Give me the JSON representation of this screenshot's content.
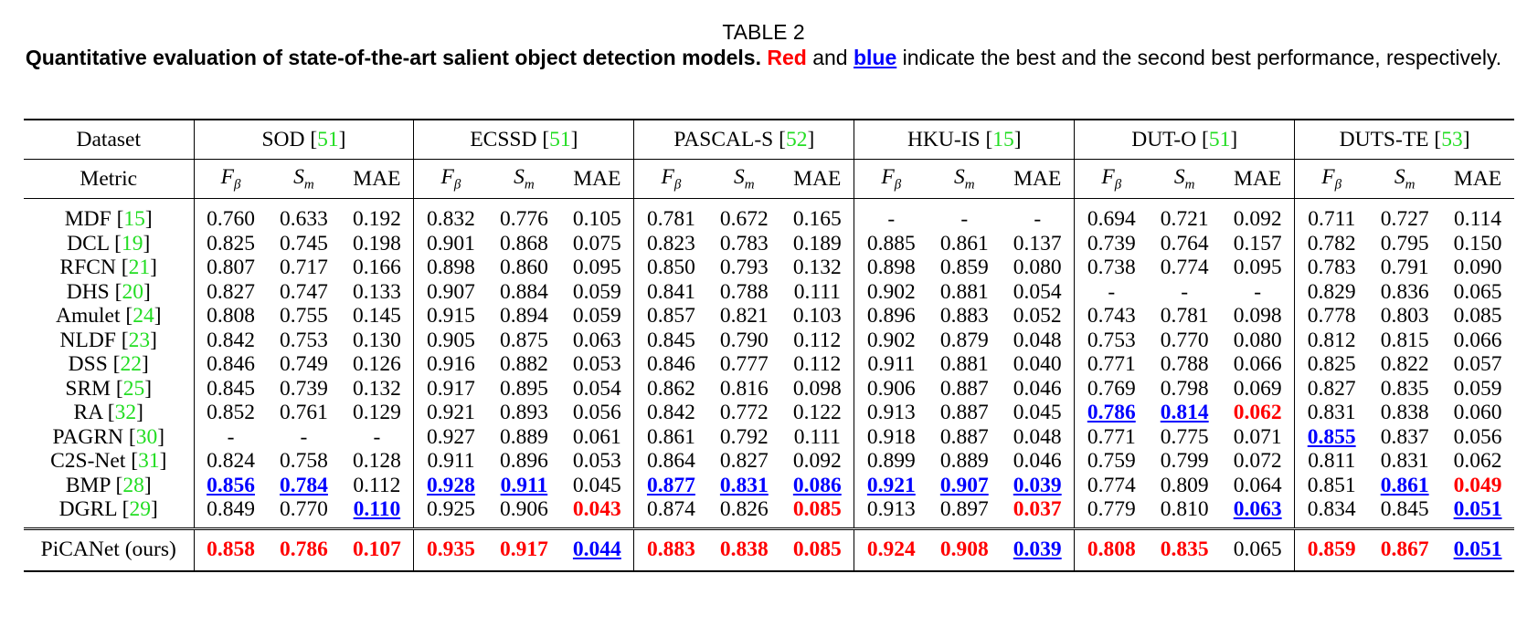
{
  "caption": {
    "title": "TABLE 2",
    "bold_text": "Quantitative evaluation of state-of-the-art salient object detection models.",
    "red_word": "Red",
    "and_word": "and",
    "blue_word": "blue",
    "rest_text": "indicate the best and the second best performance, respectively."
  },
  "header": {
    "dataset_label": "Dataset",
    "metric_label": "Metric",
    "datasets": [
      {
        "name": "SOD",
        "ref": "51"
      },
      {
        "name": "ECSSD",
        "ref": "51"
      },
      {
        "name": "PASCAL-S",
        "ref": "52"
      },
      {
        "name": "HKU-IS",
        "ref": "15"
      },
      {
        "name": "DUT-O",
        "ref": "51"
      },
      {
        "name": "DUTS-TE",
        "ref": "53"
      }
    ],
    "metrics": [
      {
        "main": "F",
        "sub": "β"
      },
      {
        "main": "S",
        "sub": "m"
      },
      {
        "main": "MAE",
        "sub": ""
      }
    ]
  },
  "colors": {
    "best": "#ff0000",
    "second": "#0000ff",
    "reference": "#22dd22"
  },
  "rows": [
    {
      "name": "MDF",
      "ref": "15",
      "cells": [
        {
          "v": "0.760",
          "s": ""
        },
        {
          "v": "0.633",
          "s": ""
        },
        {
          "v": "0.192",
          "s": ""
        },
        {
          "v": "0.832",
          "s": ""
        },
        {
          "v": "0.776",
          "s": ""
        },
        {
          "v": "0.105",
          "s": ""
        },
        {
          "v": "0.781",
          "s": ""
        },
        {
          "v": "0.672",
          "s": ""
        },
        {
          "v": "0.165",
          "s": ""
        },
        {
          "v": "-",
          "s": ""
        },
        {
          "v": "-",
          "s": ""
        },
        {
          "v": "-",
          "s": ""
        },
        {
          "v": "0.694",
          "s": ""
        },
        {
          "v": "0.721",
          "s": ""
        },
        {
          "v": "0.092",
          "s": ""
        },
        {
          "v": "0.711",
          "s": ""
        },
        {
          "v": "0.727",
          "s": ""
        },
        {
          "v": "0.114",
          "s": ""
        }
      ]
    },
    {
      "name": "DCL",
      "ref": "19",
      "cells": [
        {
          "v": "0.825",
          "s": ""
        },
        {
          "v": "0.745",
          "s": ""
        },
        {
          "v": "0.198",
          "s": ""
        },
        {
          "v": "0.901",
          "s": ""
        },
        {
          "v": "0.868",
          "s": ""
        },
        {
          "v": "0.075",
          "s": ""
        },
        {
          "v": "0.823",
          "s": ""
        },
        {
          "v": "0.783",
          "s": ""
        },
        {
          "v": "0.189",
          "s": ""
        },
        {
          "v": "0.885",
          "s": ""
        },
        {
          "v": "0.861",
          "s": ""
        },
        {
          "v": "0.137",
          "s": ""
        },
        {
          "v": "0.739",
          "s": ""
        },
        {
          "v": "0.764",
          "s": ""
        },
        {
          "v": "0.157",
          "s": ""
        },
        {
          "v": "0.782",
          "s": ""
        },
        {
          "v": "0.795",
          "s": ""
        },
        {
          "v": "0.150",
          "s": ""
        }
      ]
    },
    {
      "name": "RFCN",
      "ref": "21",
      "cells": [
        {
          "v": "0.807",
          "s": ""
        },
        {
          "v": "0.717",
          "s": ""
        },
        {
          "v": "0.166",
          "s": ""
        },
        {
          "v": "0.898",
          "s": ""
        },
        {
          "v": "0.860",
          "s": ""
        },
        {
          "v": "0.095",
          "s": ""
        },
        {
          "v": "0.850",
          "s": ""
        },
        {
          "v": "0.793",
          "s": ""
        },
        {
          "v": "0.132",
          "s": ""
        },
        {
          "v": "0.898",
          "s": ""
        },
        {
          "v": "0.859",
          "s": ""
        },
        {
          "v": "0.080",
          "s": ""
        },
        {
          "v": "0.738",
          "s": ""
        },
        {
          "v": "0.774",
          "s": ""
        },
        {
          "v": "0.095",
          "s": ""
        },
        {
          "v": "0.783",
          "s": ""
        },
        {
          "v": "0.791",
          "s": ""
        },
        {
          "v": "0.090",
          "s": ""
        }
      ]
    },
    {
      "name": "DHS",
      "ref": "20",
      "cells": [
        {
          "v": "0.827",
          "s": ""
        },
        {
          "v": "0.747",
          "s": ""
        },
        {
          "v": "0.133",
          "s": ""
        },
        {
          "v": "0.907",
          "s": ""
        },
        {
          "v": "0.884",
          "s": ""
        },
        {
          "v": "0.059",
          "s": ""
        },
        {
          "v": "0.841",
          "s": ""
        },
        {
          "v": "0.788",
          "s": ""
        },
        {
          "v": "0.111",
          "s": ""
        },
        {
          "v": "0.902",
          "s": ""
        },
        {
          "v": "0.881",
          "s": ""
        },
        {
          "v": "0.054",
          "s": ""
        },
        {
          "v": "-",
          "s": ""
        },
        {
          "v": "-",
          "s": ""
        },
        {
          "v": "-",
          "s": ""
        },
        {
          "v": "0.829",
          "s": ""
        },
        {
          "v": "0.836",
          "s": ""
        },
        {
          "v": "0.065",
          "s": ""
        }
      ]
    },
    {
      "name": "Amulet",
      "ref": "24",
      "cells": [
        {
          "v": "0.808",
          "s": ""
        },
        {
          "v": "0.755",
          "s": ""
        },
        {
          "v": "0.145",
          "s": ""
        },
        {
          "v": "0.915",
          "s": ""
        },
        {
          "v": "0.894",
          "s": ""
        },
        {
          "v": "0.059",
          "s": ""
        },
        {
          "v": "0.857",
          "s": ""
        },
        {
          "v": "0.821",
          "s": ""
        },
        {
          "v": "0.103",
          "s": ""
        },
        {
          "v": "0.896",
          "s": ""
        },
        {
          "v": "0.883",
          "s": ""
        },
        {
          "v": "0.052",
          "s": ""
        },
        {
          "v": "0.743",
          "s": ""
        },
        {
          "v": "0.781",
          "s": ""
        },
        {
          "v": "0.098",
          "s": ""
        },
        {
          "v": "0.778",
          "s": ""
        },
        {
          "v": "0.803",
          "s": ""
        },
        {
          "v": "0.085",
          "s": ""
        }
      ]
    },
    {
      "name": "NLDF",
      "ref": "23",
      "cells": [
        {
          "v": "0.842",
          "s": ""
        },
        {
          "v": "0.753",
          "s": ""
        },
        {
          "v": "0.130",
          "s": ""
        },
        {
          "v": "0.905",
          "s": ""
        },
        {
          "v": "0.875",
          "s": ""
        },
        {
          "v": "0.063",
          "s": ""
        },
        {
          "v": "0.845",
          "s": ""
        },
        {
          "v": "0.790",
          "s": ""
        },
        {
          "v": "0.112",
          "s": ""
        },
        {
          "v": "0.902",
          "s": ""
        },
        {
          "v": "0.879",
          "s": ""
        },
        {
          "v": "0.048",
          "s": ""
        },
        {
          "v": "0.753",
          "s": ""
        },
        {
          "v": "0.770",
          "s": ""
        },
        {
          "v": "0.080",
          "s": ""
        },
        {
          "v": "0.812",
          "s": ""
        },
        {
          "v": "0.815",
          "s": ""
        },
        {
          "v": "0.066",
          "s": ""
        }
      ]
    },
    {
      "name": "DSS",
      "ref": "22",
      "cells": [
        {
          "v": "0.846",
          "s": ""
        },
        {
          "v": "0.749",
          "s": ""
        },
        {
          "v": "0.126",
          "s": ""
        },
        {
          "v": "0.916",
          "s": ""
        },
        {
          "v": "0.882",
          "s": ""
        },
        {
          "v": "0.053",
          "s": ""
        },
        {
          "v": "0.846",
          "s": ""
        },
        {
          "v": "0.777",
          "s": ""
        },
        {
          "v": "0.112",
          "s": ""
        },
        {
          "v": "0.911",
          "s": ""
        },
        {
          "v": "0.881",
          "s": ""
        },
        {
          "v": "0.040",
          "s": ""
        },
        {
          "v": "0.771",
          "s": ""
        },
        {
          "v": "0.788",
          "s": ""
        },
        {
          "v": "0.066",
          "s": ""
        },
        {
          "v": "0.825",
          "s": ""
        },
        {
          "v": "0.822",
          "s": ""
        },
        {
          "v": "0.057",
          "s": ""
        }
      ]
    },
    {
      "name": "SRM",
      "ref": "25",
      "cells": [
        {
          "v": "0.845",
          "s": ""
        },
        {
          "v": "0.739",
          "s": ""
        },
        {
          "v": "0.132",
          "s": ""
        },
        {
          "v": "0.917",
          "s": ""
        },
        {
          "v": "0.895",
          "s": ""
        },
        {
          "v": "0.054",
          "s": ""
        },
        {
          "v": "0.862",
          "s": ""
        },
        {
          "v": "0.816",
          "s": ""
        },
        {
          "v": "0.098",
          "s": ""
        },
        {
          "v": "0.906",
          "s": ""
        },
        {
          "v": "0.887",
          "s": ""
        },
        {
          "v": "0.046",
          "s": ""
        },
        {
          "v": "0.769",
          "s": ""
        },
        {
          "v": "0.798",
          "s": ""
        },
        {
          "v": "0.069",
          "s": ""
        },
        {
          "v": "0.827",
          "s": ""
        },
        {
          "v": "0.835",
          "s": ""
        },
        {
          "v": "0.059",
          "s": ""
        }
      ]
    },
    {
      "name": "RA",
      "ref": "32",
      "cells": [
        {
          "v": "0.852",
          "s": ""
        },
        {
          "v": "0.761",
          "s": ""
        },
        {
          "v": "0.129",
          "s": ""
        },
        {
          "v": "0.921",
          "s": ""
        },
        {
          "v": "0.893",
          "s": ""
        },
        {
          "v": "0.056",
          "s": ""
        },
        {
          "v": "0.842",
          "s": ""
        },
        {
          "v": "0.772",
          "s": ""
        },
        {
          "v": "0.122",
          "s": ""
        },
        {
          "v": "0.913",
          "s": ""
        },
        {
          "v": "0.887",
          "s": ""
        },
        {
          "v": "0.045",
          "s": ""
        },
        {
          "v": "0.786",
          "s": "second"
        },
        {
          "v": "0.814",
          "s": "second"
        },
        {
          "v": "0.062",
          "s": "best"
        },
        {
          "v": "0.831",
          "s": ""
        },
        {
          "v": "0.838",
          "s": ""
        },
        {
          "v": "0.060",
          "s": ""
        }
      ]
    },
    {
      "name": "PAGRN",
      "ref": "30",
      "cells": [
        {
          "v": "-",
          "s": ""
        },
        {
          "v": "-",
          "s": ""
        },
        {
          "v": "-",
          "s": ""
        },
        {
          "v": "0.927",
          "s": ""
        },
        {
          "v": "0.889",
          "s": ""
        },
        {
          "v": "0.061",
          "s": ""
        },
        {
          "v": "0.861",
          "s": ""
        },
        {
          "v": "0.792",
          "s": ""
        },
        {
          "v": "0.111",
          "s": ""
        },
        {
          "v": "0.918",
          "s": ""
        },
        {
          "v": "0.887",
          "s": ""
        },
        {
          "v": "0.048",
          "s": ""
        },
        {
          "v": "0.771",
          "s": ""
        },
        {
          "v": "0.775",
          "s": ""
        },
        {
          "v": "0.071",
          "s": ""
        },
        {
          "v": "0.855",
          "s": "second"
        },
        {
          "v": "0.837",
          "s": ""
        },
        {
          "v": "0.056",
          "s": ""
        }
      ]
    },
    {
      "name": "C2S-Net",
      "ref": "31",
      "cells": [
        {
          "v": "0.824",
          "s": ""
        },
        {
          "v": "0.758",
          "s": ""
        },
        {
          "v": "0.128",
          "s": ""
        },
        {
          "v": "0.911",
          "s": ""
        },
        {
          "v": "0.896",
          "s": ""
        },
        {
          "v": "0.053",
          "s": ""
        },
        {
          "v": "0.864",
          "s": ""
        },
        {
          "v": "0.827",
          "s": ""
        },
        {
          "v": "0.092",
          "s": ""
        },
        {
          "v": "0.899",
          "s": ""
        },
        {
          "v": "0.889",
          "s": ""
        },
        {
          "v": "0.046",
          "s": ""
        },
        {
          "v": "0.759",
          "s": ""
        },
        {
          "v": "0.799",
          "s": ""
        },
        {
          "v": "0.072",
          "s": ""
        },
        {
          "v": "0.811",
          "s": ""
        },
        {
          "v": "0.831",
          "s": ""
        },
        {
          "v": "0.062",
          "s": ""
        }
      ]
    },
    {
      "name": "BMP",
      "ref": "28",
      "cells": [
        {
          "v": "0.856",
          "s": "second"
        },
        {
          "v": "0.784",
          "s": "second"
        },
        {
          "v": "0.112",
          "s": ""
        },
        {
          "v": "0.928",
          "s": "second"
        },
        {
          "v": "0.911",
          "s": "second"
        },
        {
          "v": "0.045",
          "s": ""
        },
        {
          "v": "0.877",
          "s": "second"
        },
        {
          "v": "0.831",
          "s": "second"
        },
        {
          "v": "0.086",
          "s": "second"
        },
        {
          "v": "0.921",
          "s": "second"
        },
        {
          "v": "0.907",
          "s": "second"
        },
        {
          "v": "0.039",
          "s": "second"
        },
        {
          "v": "0.774",
          "s": ""
        },
        {
          "v": "0.809",
          "s": ""
        },
        {
          "v": "0.064",
          "s": ""
        },
        {
          "v": "0.851",
          "s": ""
        },
        {
          "v": "0.861",
          "s": "second"
        },
        {
          "v": "0.049",
          "s": "best"
        }
      ]
    },
    {
      "name": "DGRL",
      "ref": "29",
      "cells": [
        {
          "v": "0.849",
          "s": ""
        },
        {
          "v": "0.770",
          "s": ""
        },
        {
          "v": "0.110",
          "s": "second"
        },
        {
          "v": "0.925",
          "s": ""
        },
        {
          "v": "0.906",
          "s": ""
        },
        {
          "v": "0.043",
          "s": "best"
        },
        {
          "v": "0.874",
          "s": ""
        },
        {
          "v": "0.826",
          "s": ""
        },
        {
          "v": "0.085",
          "s": "best"
        },
        {
          "v": "0.913",
          "s": ""
        },
        {
          "v": "0.897",
          "s": ""
        },
        {
          "v": "0.037",
          "s": "best"
        },
        {
          "v": "0.779",
          "s": ""
        },
        {
          "v": "0.810",
          "s": ""
        },
        {
          "v": "0.063",
          "s": "second"
        },
        {
          "v": "0.834",
          "s": ""
        },
        {
          "v": "0.845",
          "s": ""
        },
        {
          "v": "0.051",
          "s": "second"
        }
      ]
    }
  ],
  "ours": {
    "name": "PiCANet (ours)",
    "cells": [
      {
        "v": "0.858",
        "s": "best"
      },
      {
        "v": "0.786",
        "s": "best"
      },
      {
        "v": "0.107",
        "s": "best"
      },
      {
        "v": "0.935",
        "s": "best"
      },
      {
        "v": "0.917",
        "s": "best"
      },
      {
        "v": "0.044",
        "s": "second"
      },
      {
        "v": "0.883",
        "s": "best"
      },
      {
        "v": "0.838",
        "s": "best"
      },
      {
        "v": "0.085",
        "s": "best"
      },
      {
        "v": "0.924",
        "s": "best"
      },
      {
        "v": "0.908",
        "s": "best"
      },
      {
        "v": "0.039",
        "s": "second"
      },
      {
        "v": "0.808",
        "s": "best"
      },
      {
        "v": "0.835",
        "s": "best"
      },
      {
        "v": "0.065",
        "s": ""
      },
      {
        "v": "0.859",
        "s": "best"
      },
      {
        "v": "0.867",
        "s": "best"
      },
      {
        "v": "0.051",
        "s": "second"
      }
    ]
  }
}
